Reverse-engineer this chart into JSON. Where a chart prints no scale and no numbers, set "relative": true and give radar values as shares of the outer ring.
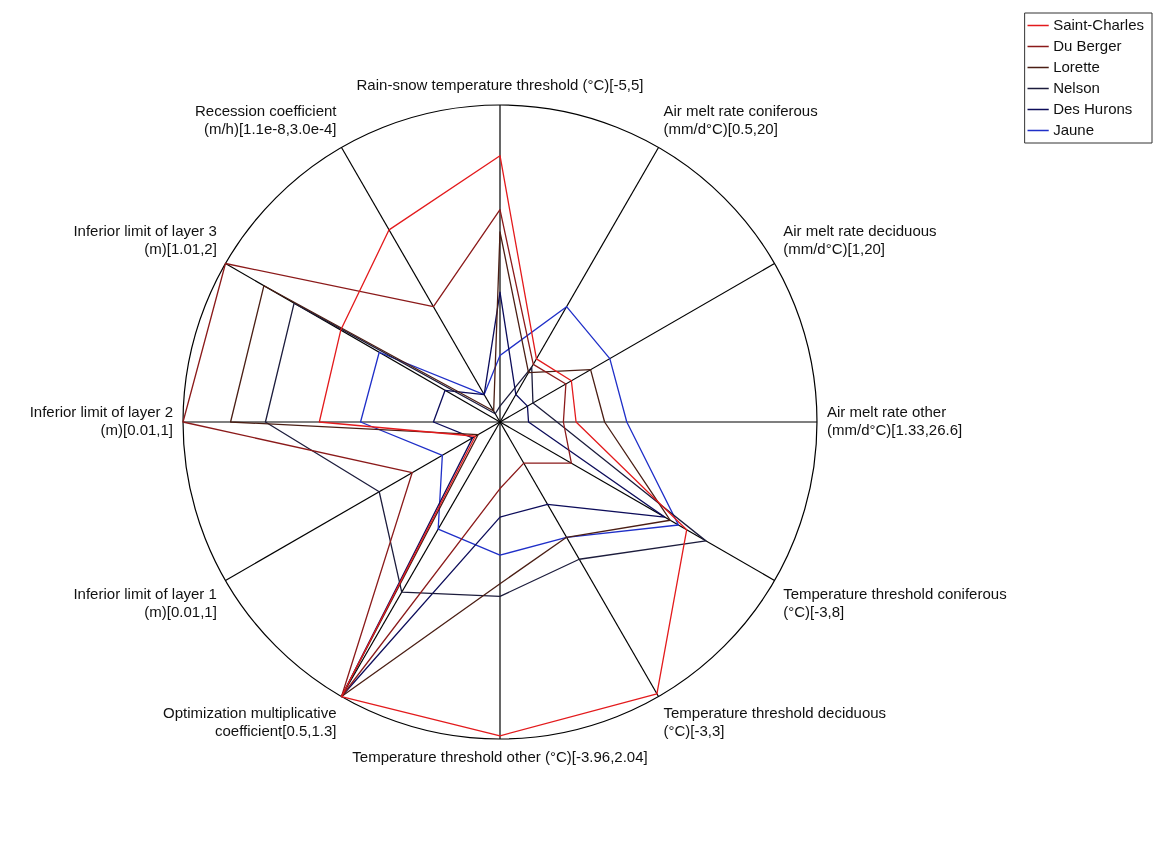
{
  "chart_data": {
    "type": "radar",
    "relative": true,
    "legend": "top right",
    "marker": "none",
    "line_style": "solid",
    "categories": [
      "Rain-snow temperature threshold (°C)[-5,5]",
      "Air melt rate coniferous (mm/d°C)[0.5,20]",
      "Air melt rate deciduous (mm/d°C)[1,20]",
      "Air melt rate other (mm/d°C)[1.33,26.6]",
      "Temperature threshold coniferous (°C)[-3,8]",
      "Temperature threshold deciduous (°C)[-3,3]",
      "Temperature threshold other (°C)[-3.96,2.04]",
      "Optimization multiplicative coefficient[0.5,1.3]",
      "Inferior limit of layer 1 (m)[0.01,1]",
      "Inferior limit of layer 2 (m)[0.01,1]",
      "Inferior limit of layer 3 (m)[1.01,2]",
      "Recession coefficient (m/h)[1.1e-8,3.0e-4]"
    ],
    "series": [
      {
        "name": "Saint-Charles",
        "color": "#e31a1c",
        "values": [
          0.84,
          0.23,
          0.26,
          0.24,
          0.68,
          0.99,
          0.99,
          1.0,
          0.09,
          0.57,
          0.58,
          0.7
        ]
      },
      {
        "name": "Du Berger",
        "color": "#8b1a1a",
        "values": [
          0.67,
          0.21,
          0.24,
          0.2,
          0.26,
          0.15,
          0.21,
          1.0,
          0.32,
          1.0,
          1.0,
          0.42
        ]
      },
      {
        "name": "Lorette",
        "color": "#4a1e14",
        "values": [
          0.6,
          0.18,
          0.33,
          0.33,
          0.62,
          0.42,
          0.51,
          1.0,
          0.08,
          0.85,
          0.86,
          0.04
        ]
      },
      {
        "name": "Nelson",
        "color": "#1c1c3c",
        "values": [
          0.05,
          0.2,
          0.12,
          0.18,
          0.75,
          0.5,
          0.55,
          0.62,
          0.44,
          0.74,
          0.75,
          0.03
        ]
      },
      {
        "name": "Des Hurons",
        "color": "#0c0c5a",
        "values": [
          0.41,
          0.1,
          0.1,
          0.09,
          0.6,
          0.3,
          0.3,
          1.0,
          0.1,
          0.21,
          0.2,
          0.1
        ]
      },
      {
        "name": "Jaune",
        "color": "#1f2fc8",
        "values": [
          0.21,
          0.42,
          0.4,
          0.4,
          0.65,
          0.42,
          0.42,
          0.39,
          0.21,
          0.44,
          0.44,
          0.1
        ]
      }
    ]
  }
}
